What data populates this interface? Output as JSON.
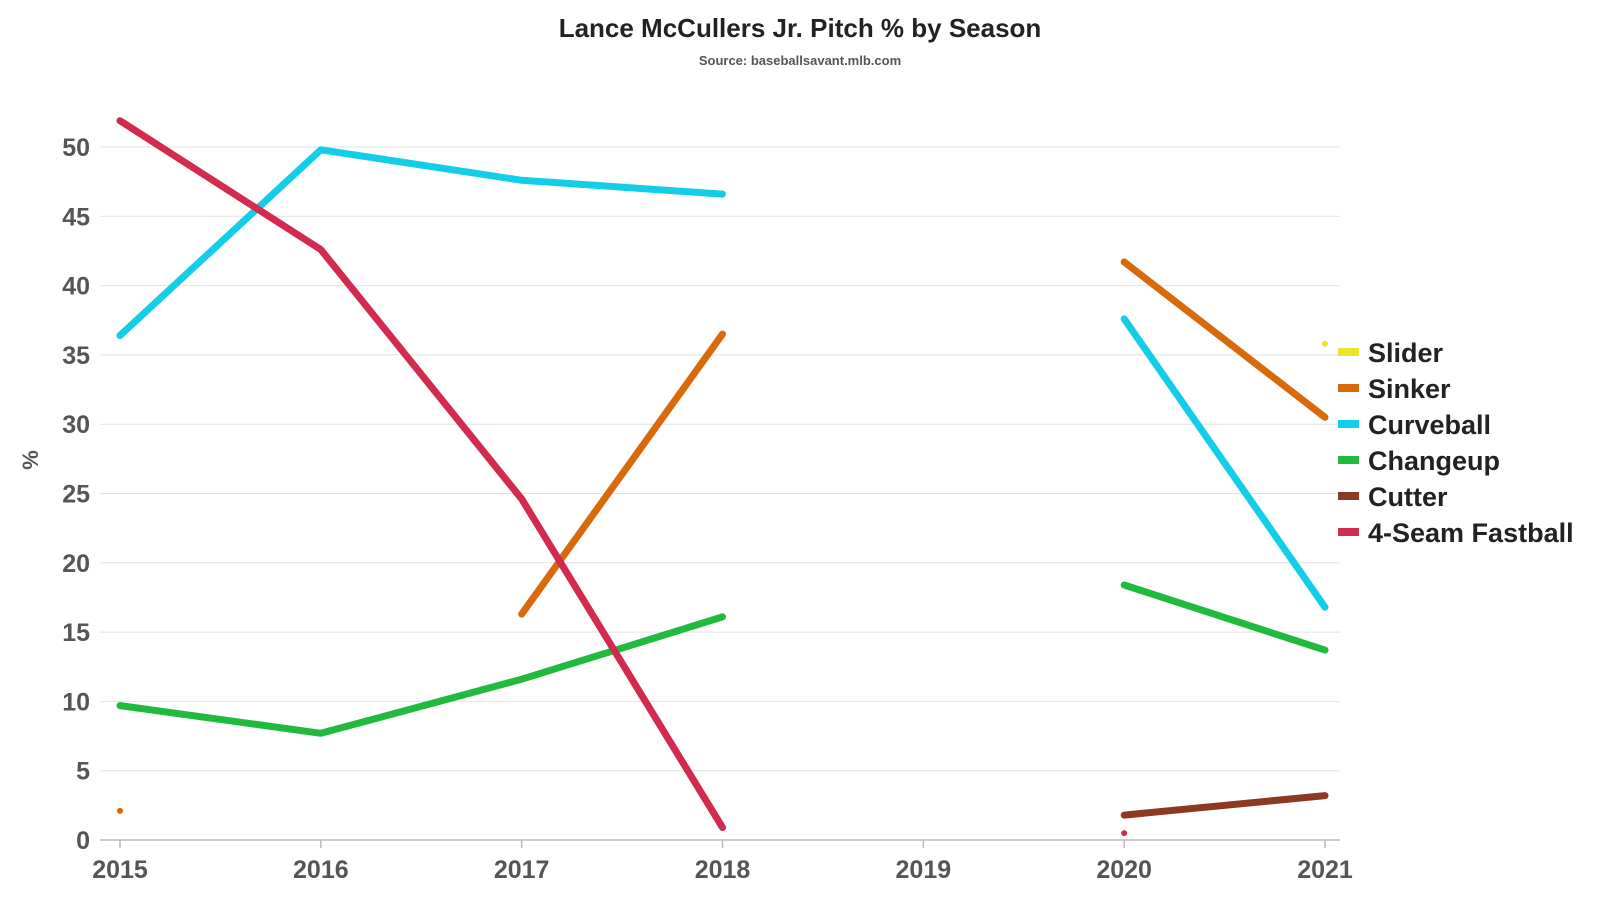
{
  "chart_data": {
    "type": "line",
    "title": "Lance McCullers Jr. Pitch % by Season",
    "subtitle": "Source: baseballsavant.mlb.com",
    "xlabel": "",
    "ylabel": "%",
    "x": [
      "2015",
      "2016",
      "2017",
      "2018",
      "2019",
      "2020",
      "2021"
    ],
    "ylim": [
      0,
      52
    ],
    "yticks": [
      0,
      5,
      10,
      15,
      20,
      25,
      30,
      35,
      40,
      45,
      50
    ],
    "grid": true,
    "legend_position": "right",
    "series": [
      {
        "name": "Slider",
        "color": "#ede52a",
        "values": [
          null,
          null,
          null,
          null,
          null,
          null,
          35.8
        ]
      },
      {
        "name": "Sinker",
        "color": "#d96a0b",
        "values": [
          2.1,
          null,
          16.3,
          36.5,
          null,
          41.7,
          30.5
        ]
      },
      {
        "name": "Curveball",
        "color": "#14cde8",
        "values": [
          36.4,
          49.8,
          47.6,
          46.6,
          null,
          37.6,
          16.8
        ]
      },
      {
        "name": "Changeup",
        "color": "#20bb3c",
        "values": [
          9.7,
          7.7,
          11.6,
          16.1,
          null,
          18.4,
          13.7
        ]
      },
      {
        "name": "Cutter",
        "color": "#8c3a22",
        "values": [
          null,
          null,
          null,
          null,
          null,
          1.8,
          3.2
        ]
      },
      {
        "name": "4-Seam Fastball",
        "color": "#d22b4f",
        "values": [
          51.9,
          42.6,
          24.6,
          0.9,
          null,
          0.5,
          null
        ]
      }
    ]
  }
}
